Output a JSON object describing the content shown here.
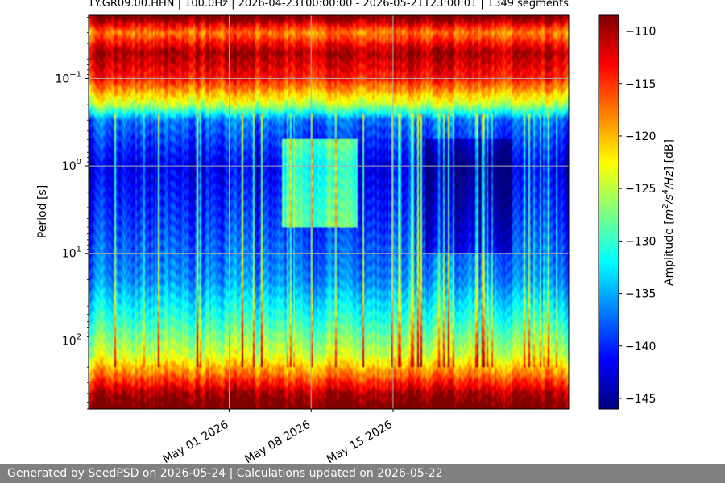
{
  "chart_data": {
    "type": "heatmap",
    "title": "1Y.GR09.00.HHN | 100.0Hz | 2026-04-23T00:00:00 - 2026-05-21T23:00:01 | 1349 segments",
    "ylabel": "Period [s]",
    "colorbar_label": "Amplitude [m²/s⁴/Hz] [dB]",
    "colorbar_label_parts": {
      "pre": "Amplitude [",
      "m": "m",
      "two": "2",
      "slash1": "/s",
      "four": "4",
      "hz": "/Hz",
      "post": "] [dB]"
    },
    "y_scale": "log",
    "y_inverted": true,
    "ylim": [
      0.019,
      600
    ],
    "y_ticks": [
      {
        "value": 0.1,
        "base": "10",
        "exp": "−1"
      },
      {
        "value": 1,
        "base": "10",
        "exp": "0"
      },
      {
        "value": 10,
        "base": "10",
        "exp": "1"
      },
      {
        "value": 100,
        "base": "10",
        "exp": "2"
      }
    ],
    "x_range": [
      "2026-04-19",
      "2026-05-30"
    ],
    "x_ticks": [
      {
        "date": "2026-05-01",
        "label": "May 01 2026"
      },
      {
        "date": "2026-05-08",
        "label": "May 08 2026"
      },
      {
        "date": "2026-05-15",
        "label": "May 15 2026"
      }
    ],
    "colorbar_range": [
      -146,
      -108.5
    ],
    "colorbar_ticks": [
      "-110",
      "-115",
      "-120",
      "-125",
      "-130",
      "-135",
      "-140",
      "-145"
    ],
    "colormap": "jet",
    "grid": true,
    "amplitude_profile_by_period": [
      {
        "period_s": 0.02,
        "db": -108
      },
      {
        "period_s": 0.03,
        "db": -118
      },
      {
        "period_s": 0.05,
        "db": -110
      },
      {
        "period_s": 0.1,
        "db": -114
      },
      {
        "period_s": 0.2,
        "db": -125
      },
      {
        "period_s": 0.3,
        "db": -137
      },
      {
        "period_s": 1,
        "db": -142
      },
      {
        "period_s": 5,
        "db": -139
      },
      {
        "period_s": 20,
        "db": -136
      },
      {
        "period_s": 60,
        "db": -130
      },
      {
        "period_s": 150,
        "db": -124
      },
      {
        "period_s": 250,
        "db": -117
      },
      {
        "period_s": 400,
        "db": -110
      },
      {
        "period_s": 600,
        "db": -107
      }
    ]
  },
  "footer": {
    "text": "Generated by SeedPSD on 2026-05-24 | Calculations updated on 2026-05-22"
  },
  "colors": {
    "footer_bg": "#808080",
    "footer_text": "#ffffff",
    "grid": "#b0b0b0"
  }
}
